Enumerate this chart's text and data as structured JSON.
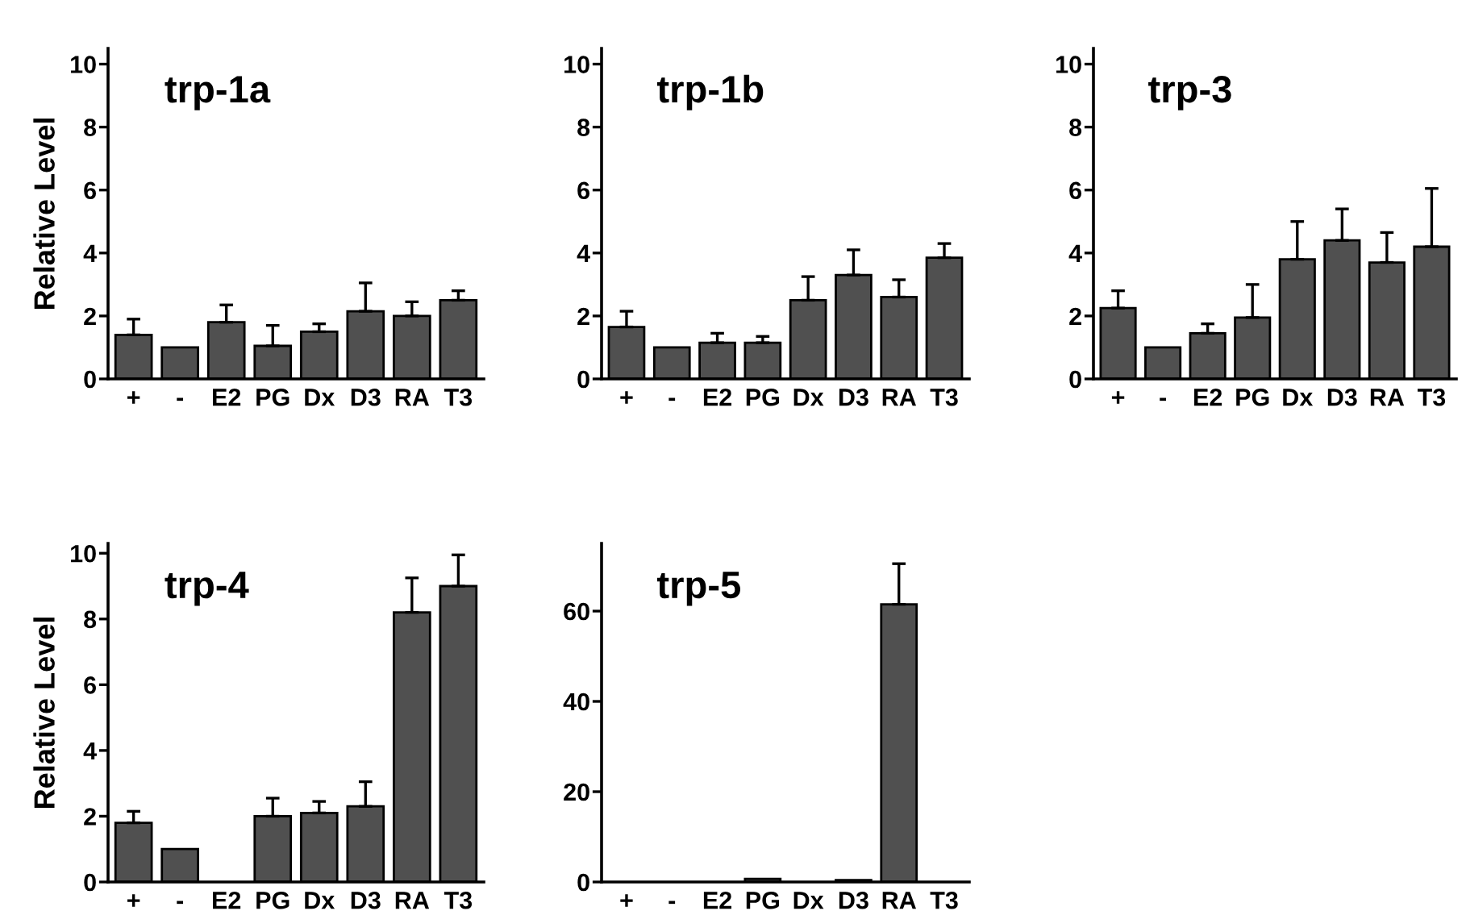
{
  "chart_data": [
    {
      "type": "bar",
      "title": "trp-1a",
      "ylabel": "Relative Level",
      "categories": [
        "+",
        "-",
        "E2",
        "PG",
        "Dx",
        "D3",
        "RA",
        "T3"
      ],
      "color": "#505050",
      "values": [
        1.4,
        1.0,
        1.8,
        1.05,
        1.5,
        2.15,
        2.0,
        2.5
      ],
      "errors": [
        [
          1.4,
          1.9
        ],
        null,
        [
          1.8,
          2.35
        ],
        [
          1.05,
          1.7
        ],
        [
          1.5,
          1.75
        ],
        [
          2.15,
          3.05
        ],
        [
          2.0,
          2.45
        ],
        [
          2.5,
          2.8
        ]
      ],
      "ylim": [
        0,
        10.5
      ],
      "yticks": [
        0,
        2,
        4,
        6,
        8,
        10
      ],
      "grid": false,
      "legend": false
    },
    {
      "type": "bar",
      "title": "trp-1b",
      "categories": [
        "+",
        "-",
        "E2",
        "PG",
        "Dx",
        "D3",
        "RA",
        "T3"
      ],
      "color": "#505050",
      "values": [
        1.65,
        1.0,
        1.15,
        1.15,
        2.5,
        3.3,
        2.6,
        3.85
      ],
      "errors": [
        [
          1.65,
          2.15
        ],
        null,
        [
          1.15,
          1.45
        ],
        [
          1.15,
          1.35
        ],
        [
          2.5,
          3.25
        ],
        [
          3.3,
          4.1
        ],
        [
          2.6,
          3.15
        ],
        [
          3.85,
          4.3
        ]
      ],
      "ylim": [
        0,
        10.5
      ],
      "yticks": [
        0,
        2,
        4,
        6,
        8,
        10
      ],
      "grid": false,
      "legend": false
    },
    {
      "type": "bar",
      "title": "trp-3",
      "categories": [
        "+",
        "-",
        "E2",
        "PG",
        "Dx",
        "D3",
        "RA",
        "T3"
      ],
      "color": "#505050",
      "values": [
        2.25,
        1.0,
        1.45,
        1.95,
        3.8,
        4.4,
        3.7,
        4.2
      ],
      "errors": [
        [
          2.25,
          2.8
        ],
        null,
        [
          1.45,
          1.75
        ],
        [
          1.95,
          3.0
        ],
        [
          3.8,
          5.0
        ],
        [
          4.4,
          5.4
        ],
        [
          3.7,
          4.65
        ],
        [
          4.2,
          6.05
        ]
      ],
      "ylim": [
        0,
        10.5
      ],
      "yticks": [
        0,
        2,
        4,
        6,
        8,
        10
      ],
      "grid": false,
      "legend": false
    },
    {
      "type": "bar",
      "title": "trp-4",
      "ylabel": "Relative Level",
      "categories": [
        "+",
        "-",
        "E2",
        "PG",
        "Dx",
        "D3",
        "RA",
        "T3"
      ],
      "color": "#505050",
      "values": [
        1.8,
        1.0,
        null,
        2.0,
        2.1,
        2.3,
        8.2,
        9.0
      ],
      "errors": [
        [
          1.8,
          2.15
        ],
        null,
        null,
        [
          2.0,
          2.55
        ],
        [
          2.1,
          2.45
        ],
        [
          2.3,
          3.05
        ],
        [
          8.2,
          9.25
        ],
        [
          9.0,
          9.95
        ]
      ],
      "ylim": [
        0,
        10.3
      ],
      "yticks": [
        0,
        2,
        4,
        6,
        8,
        10
      ],
      "grid": false,
      "legend": false
    },
    {
      "type": "bar",
      "title": "trp-5",
      "categories": [
        "+",
        "-",
        "E2",
        "PG",
        "Dx",
        "D3",
        "RA",
        "T3"
      ],
      "color": "#505050",
      "values": [
        null,
        null,
        null,
        0.7,
        null,
        0.4,
        61.5,
        null
      ],
      "errors": [
        null,
        null,
        null,
        null,
        null,
        null,
        [
          61.5,
          70.5
        ],
        null
      ],
      "ylim": [
        0,
        75
      ],
      "yticks": [
        0,
        20,
        40,
        60
      ],
      "grid": false,
      "legend": false
    }
  ]
}
